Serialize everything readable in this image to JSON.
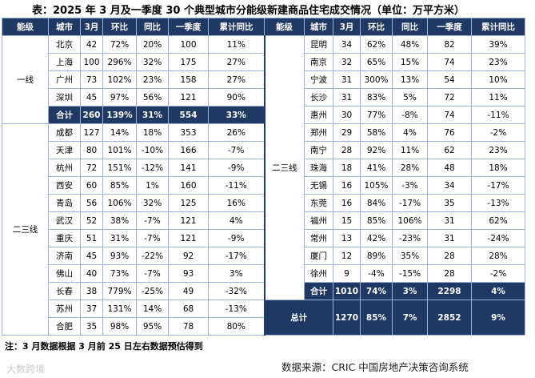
{
  "title": "表：2025 年 3 月及一季度 30 个典型城市分能级新建商品住宅成交情况（单位：万平方米）",
  "header": [
    "能级",
    "城市",
    "3月",
    "环比",
    "同比",
    "一季度",
    "累计同比",
    "能级",
    "城市",
    "3月",
    "环比",
    "同比",
    "一季度",
    "累计同比"
  ],
  "left": [
    {
      "level": "一线",
      "rows": [
        [
          "北京",
          "42",
          "72%",
          "20%",
          "100",
          "11%"
        ],
        [
          "上海",
          "100",
          "296%",
          "32%",
          "175",
          "27%"
        ],
        [
          "广州",
          "73",
          "102%",
          "23%",
          "158",
          "27%"
        ],
        [
          "深圳",
          "45",
          "97%",
          "56%",
          "121",
          "90%"
        ]
      ],
      "subtotal": [
        "合计",
        "260",
        "139%",
        "31%",
        "554",
        "33%"
      ]
    },
    {
      "level": "二三线",
      "rows": [
        [
          "成都",
          "127",
          "14%",
          "18%",
          "353",
          "26%"
        ],
        [
          "天津",
          "80",
          "101%",
          "-10%",
          "166",
          "-7%"
        ],
        [
          "杭州",
          "72",
          "151%",
          "-12%",
          "141",
          "-9%"
        ],
        [
          "西安",
          "60",
          "85%",
          "1%",
          "160",
          "-11%"
        ],
        [
          "青岛",
          "56",
          "106%",
          "32%",
          "125",
          "16%"
        ],
        [
          "武汉",
          "52",
          "38%",
          "-7%",
          "121",
          "4%"
        ],
        [
          "重庆",
          "51",
          "31%",
          "-7%",
          "121",
          "-9%"
        ],
        [
          "济南",
          "45",
          "93%",
          "-22%",
          "92",
          "-17%"
        ],
        [
          "佛山",
          "40",
          "73%",
          "-7%",
          "93",
          "3%"
        ],
        [
          "长春",
          "38",
          "779%",
          "-25%",
          "49",
          "-32%"
        ],
        [
          "苏州",
          "37",
          "131%",
          "14%",
          "68",
          "-13%"
        ],
        [
          "合肥",
          "35",
          "98%",
          "95%",
          "78",
          "80%"
        ]
      ]
    }
  ],
  "right": [
    {
      "level": "二三线",
      "rows": [
        [
          "昆明",
          "34",
          "62%",
          "48%",
          "82",
          "39%"
        ],
        [
          "南京",
          "32",
          "65%",
          "15%",
          "74",
          "23%"
        ],
        [
          "宁波",
          "31",
          "300%",
          "13%",
          "54",
          "10%"
        ],
        [
          "长沙",
          "31",
          "83%",
          "5%",
          "72",
          "11%"
        ],
        [
          "惠州",
          "30",
          "77%",
          "-8%",
          "74",
          "-11%"
        ],
        [
          "郑州",
          "29",
          "58%",
          "4%",
          "76",
          "-2%"
        ],
        [
          "南宁",
          "28",
          "92%",
          "11%",
          "62",
          "23%"
        ],
        [
          "珠海",
          "18",
          "41%",
          "28%",
          "48",
          "18%"
        ],
        [
          "无锡",
          "16",
          "105%",
          "-3%",
          "34",
          "-17%"
        ],
        [
          "东莞",
          "16",
          "84%",
          "-17%",
          "35",
          "-13%"
        ],
        [
          "福州",
          "15",
          "85%",
          "106%",
          "31",
          "62%"
        ],
        [
          "常州",
          "13",
          "42%",
          "-23%",
          "31",
          "-24%"
        ],
        [
          "厦门",
          "12",
          "89%",
          "35%",
          "28",
          "28%"
        ],
        [
          "徐州",
          "9",
          "-4%",
          "-15%",
          "28",
          "-2%"
        ]
      ],
      "subtotal": [
        "合计",
        "1010",
        "74%",
        "3%",
        "2298",
        "4%"
      ]
    }
  ],
  "total": {
    "label": "总计",
    "values": [
      "1270",
      "85%",
      "7%",
      "2852",
      "9%"
    ]
  },
  "note": "注：3 月数据根据 3 月前 25 日左右数据预估得到",
  "source": "数据来源：CRIC 中国房地产决策咨询系统",
  "watermark": "大数跨境"
}
